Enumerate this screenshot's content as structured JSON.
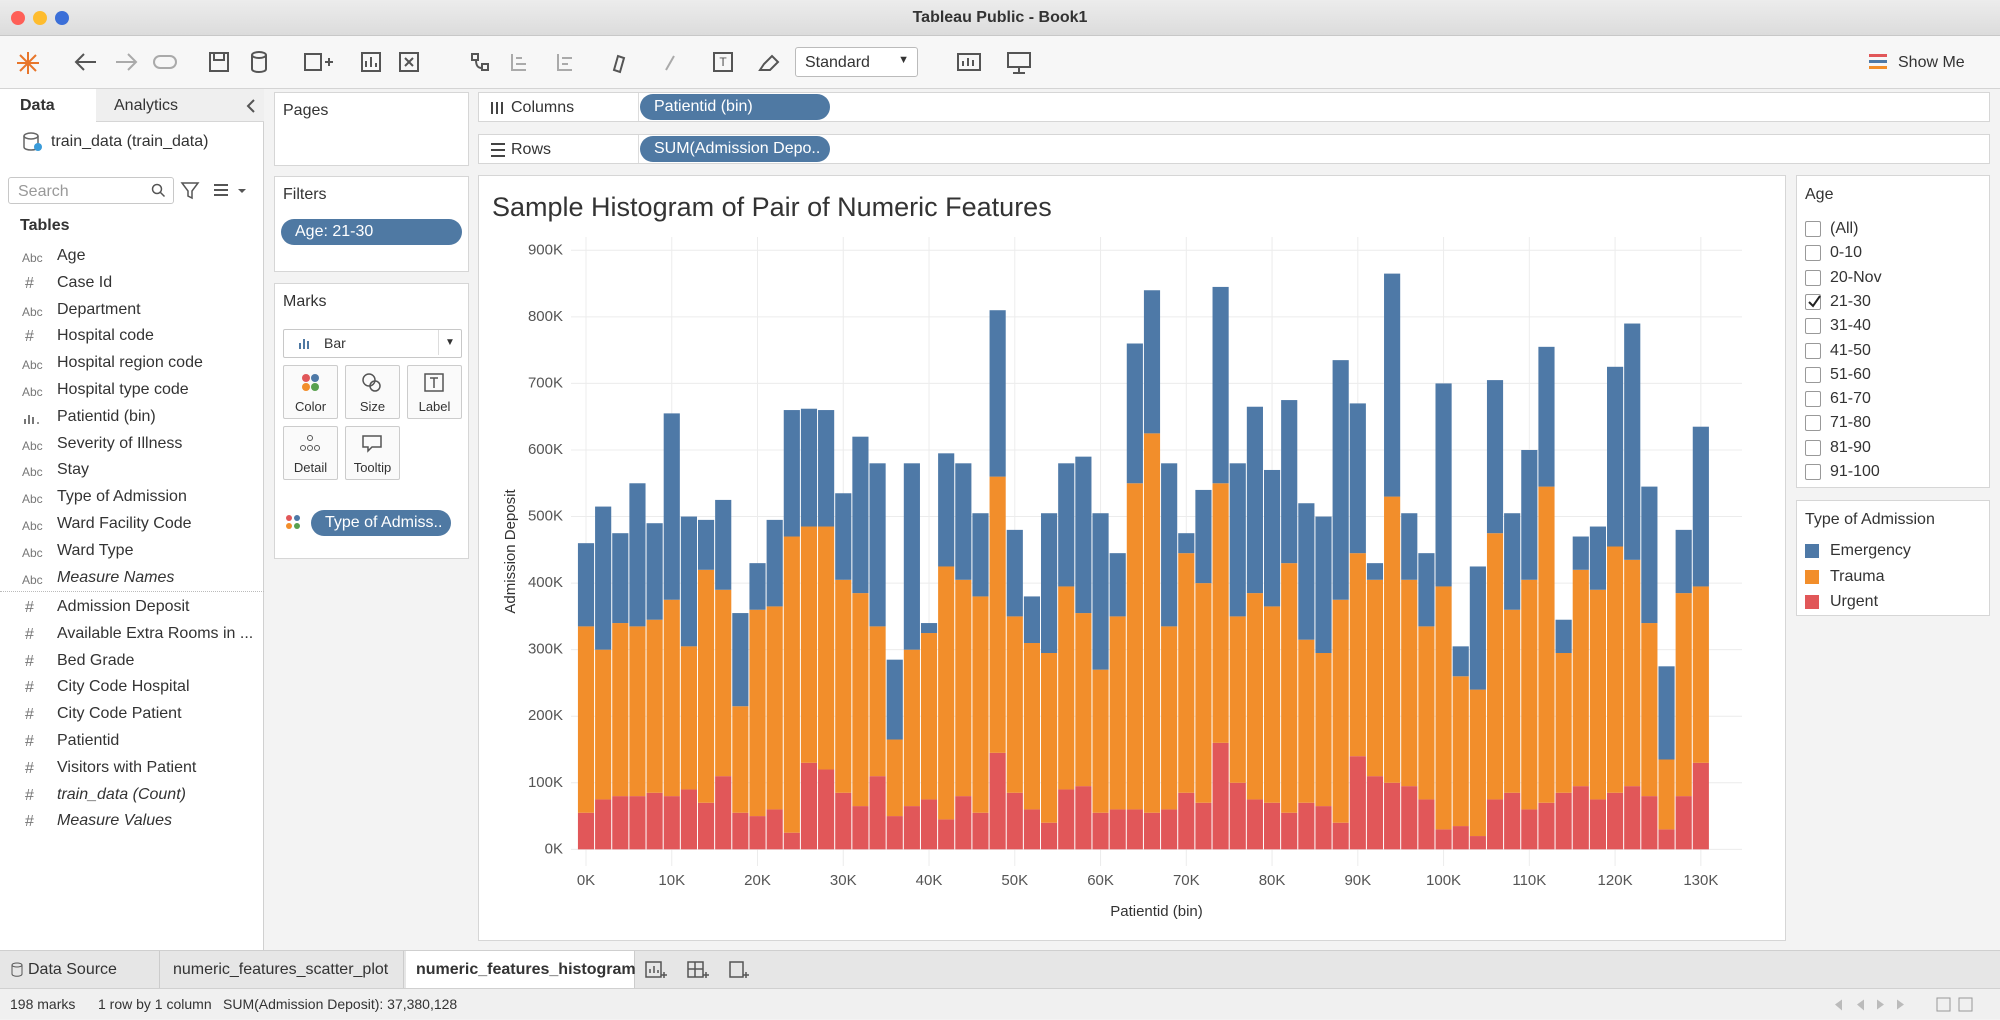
{
  "window": {
    "title": "Tableau Public - Book1"
  },
  "toolbar": {
    "fit": "Standard",
    "show_me": "Show Me"
  },
  "data_pane": {
    "tabs": [
      "Data",
      "Analytics"
    ],
    "source": "train_data (train_data)",
    "search": "Search",
    "tables_heading": "Tables",
    "dimensions": [
      {
        "icon": "Abc",
        "name": "Age"
      },
      {
        "icon": "#",
        "name": "Case Id"
      },
      {
        "icon": "Abc",
        "name": "Department"
      },
      {
        "icon": "#",
        "name": "Hospital code"
      },
      {
        "icon": "Abc",
        "name": "Hospital region code"
      },
      {
        "icon": "Abc",
        "name": "Hospital type code"
      },
      {
        "name": "Patientid (bin)"
      },
      {
        "icon": "Abc",
        "name": "Severity of Illness"
      },
      {
        "icon": "Abc",
        "name": "Stay"
      },
      {
        "icon": "Abc",
        "name": "Type of Admission"
      },
      {
        "icon": "Abc",
        "name": "Ward Facility Code"
      },
      {
        "icon": "Abc",
        "name": "Ward Type"
      },
      {
        "icon": "Abc",
        "name": "Measure Names",
        "italic": true
      }
    ],
    "measures": [
      {
        "icon": "#",
        "name": "Admission Deposit"
      },
      {
        "icon": "#",
        "name": "Available Extra Rooms in ..."
      },
      {
        "icon": "#",
        "name": "Bed Grade"
      },
      {
        "icon": "#",
        "name": "City Code Hospital"
      },
      {
        "icon": "#",
        "name": "City Code Patient"
      },
      {
        "icon": "#",
        "name": "Patientid"
      },
      {
        "icon": "#",
        "name": "Visitors with Patient"
      },
      {
        "icon": "#",
        "name": "train_data (Count)",
        "italic": true
      },
      {
        "icon": "#",
        "name": "Measure Values",
        "italic": true
      }
    ]
  },
  "shelves": {
    "pages": "Pages",
    "filters": "Filters",
    "filter_pills": [
      "Age: 21-30"
    ],
    "marks": "Marks",
    "mark_type": "Bar",
    "mark_buttons": [
      "Color",
      "Size",
      "Label",
      "Detail",
      "Tooltip"
    ],
    "mark_pills": [
      "Type of Admiss.."
    ],
    "columns": "Columns",
    "columns_pills": [
      "Patientid (bin)"
    ],
    "rows": "Rows",
    "rows_pills": [
      "SUM(Admission Depo.."
    ]
  },
  "chart_data": {
    "type": "bar",
    "stacked": true,
    "title": "Sample Histogram of Pair of Numeric Features",
    "x_label": "Patientid (bin)",
    "y_label": "Admission Deposit",
    "legend_title": "Type of Admission",
    "grid": true,
    "x": [
      0,
      2000,
      4000,
      6000,
      8000,
      10000,
      12000,
      14000,
      16000,
      18000,
      20000,
      22000,
      24000,
      26000,
      28000,
      30000,
      32000,
      34000,
      36000,
      38000,
      40000,
      42000,
      44000,
      46000,
      48000,
      50000,
      52000,
      54000,
      56000,
      58000,
      60000,
      62000,
      64000,
      66000,
      68000,
      70000,
      72000,
      74000,
      76000,
      78000,
      80000,
      82000,
      84000,
      86000,
      88000,
      90000,
      92000,
      94000,
      96000,
      98000,
      100000,
      102000,
      104000,
      106000,
      108000,
      110000,
      112000,
      114000,
      116000,
      118000,
      120000,
      122000,
      124000,
      126000,
      128000,
      130000
    ],
    "series": [
      {
        "name": "Emergency",
        "color": "#4e79a7",
        "values": [
          125000,
          215000,
          135000,
          215000,
          145000,
          280000,
          195000,
          75000,
          135000,
          140000,
          70000,
          130000,
          190000,
          177000,
          175000,
          130000,
          235000,
          245000,
          120000,
          280000,
          15000,
          170000,
          175000,
          125000,
          250000,
          130000,
          70000,
          210000,
          185000,
          235000,
          235000,
          95000,
          210000,
          215000,
          245000,
          30000,
          140000,
          295000,
          230000,
          280000,
          205000,
          245000,
          205000,
          205000,
          360000,
          225000,
          25000,
          335000,
          100000,
          110000,
          305000,
          45000,
          185000,
          230000,
          145000,
          195000,
          210000,
          50000,
          50000,
          95000,
          270000,
          355000,
          205000,
          140000,
          95000,
          240000
        ]
      },
      {
        "name": "Trauma",
        "color": "#f28e2b",
        "values": [
          280000,
          225000,
          260000,
          255000,
          260000,
          295000,
          215000,
          350000,
          280000,
          160000,
          310000,
          305000,
          445000,
          355000,
          365000,
          320000,
          320000,
          225000,
          115000,
          235000,
          250000,
          380000,
          325000,
          325000,
          415000,
          265000,
          250000,
          255000,
          305000,
          260000,
          215000,
          290000,
          490000,
          570000,
          275000,
          360000,
          330000,
          390000,
          250000,
          310000,
          295000,
          375000,
          245000,
          230000,
          335000,
          305000,
          295000,
          430000,
          310000,
          260000,
          365000,
          225000,
          220000,
          400000,
          275000,
          345000,
          475000,
          210000,
          325000,
          315000,
          370000,
          340000,
          260000,
          105000,
          305000,
          265000
        ]
      },
      {
        "name": "Urgent",
        "color": "#e15759",
        "values": [
          55000,
          75000,
          80000,
          80000,
          85000,
          80000,
          90000,
          70000,
          110000,
          55000,
          50000,
          60000,
          25000,
          130000,
          120000,
          85000,
          65000,
          110000,
          50000,
          65000,
          75000,
          45000,
          80000,
          55000,
          145000,
          85000,
          60000,
          40000,
          90000,
          95000,
          55000,
          60000,
          60000,
          55000,
          60000,
          85000,
          70000,
          160000,
          100000,
          75000,
          70000,
          55000,
          70000,
          65000,
          40000,
          140000,
          110000,
          100000,
          95000,
          75000,
          30000,
          35000,
          20000,
          75000,
          85000,
          60000,
          70000,
          85000,
          95000,
          75000,
          85000,
          95000,
          80000,
          30000,
          80000,
          130000
        ]
      }
    ],
    "xlim": [
      -1750,
      134800
    ],
    "xticks": [
      {
        "value": 0,
        "label": "0K"
      },
      {
        "value": 10000,
        "label": "10K"
      },
      {
        "value": 20000,
        "label": "20K"
      },
      {
        "value": 30000,
        "label": "30K"
      },
      {
        "value": 40000,
        "label": "40K"
      },
      {
        "value": 50000,
        "label": "50K"
      },
      {
        "value": 60000,
        "label": "60K"
      },
      {
        "value": 70000,
        "label": "70K"
      },
      {
        "value": 80000,
        "label": "80K"
      },
      {
        "value": 90000,
        "label": "90K"
      },
      {
        "value": 100000,
        "label": "100K"
      },
      {
        "value": 110000,
        "label": "110K"
      },
      {
        "value": 120000,
        "label": "120K"
      },
      {
        "value": 130000,
        "label": "130K"
      }
    ],
    "ylim": [
      -25000,
      920000
    ],
    "yticks": [
      {
        "value": 0,
        "label": "0K"
      },
      {
        "value": 100000,
        "label": "100K"
      },
      {
        "value": 200000,
        "label": "200K"
      },
      {
        "value": 300000,
        "label": "300K"
      },
      {
        "value": 400000,
        "label": "400K"
      },
      {
        "value": 500000,
        "label": "500K"
      },
      {
        "value": 600000,
        "label": "600K"
      },
      {
        "value": 700000,
        "label": "700K"
      },
      {
        "value": 800000,
        "label": "800K"
      },
      {
        "value": 900000,
        "label": "900K"
      }
    ]
  },
  "age_filter": {
    "title": "Age",
    "options": [
      {
        "label": "(All)",
        "checked": false
      },
      {
        "label": "0-10",
        "checked": false
      },
      {
        "label": "20-Nov",
        "checked": false
      },
      {
        "label": "21-30",
        "checked": true
      },
      {
        "label": "31-40",
        "checked": false
      },
      {
        "label": "41-50",
        "checked": false
      },
      {
        "label": "51-60",
        "checked": false
      },
      {
        "label": "61-70",
        "checked": false
      },
      {
        "label": "71-80",
        "checked": false
      },
      {
        "label": "81-90",
        "checked": false
      },
      {
        "label": "91-100",
        "checked": false
      }
    ]
  },
  "tabs": {
    "items": [
      "Data Source",
      "numeric_features_scatter_plot",
      "numeric_features_histogram"
    ],
    "active": 2
  },
  "status_bar": [
    "198 marks",
    "1 row by 1 column",
    "SUM(Admission Deposit): 37,380,128"
  ]
}
